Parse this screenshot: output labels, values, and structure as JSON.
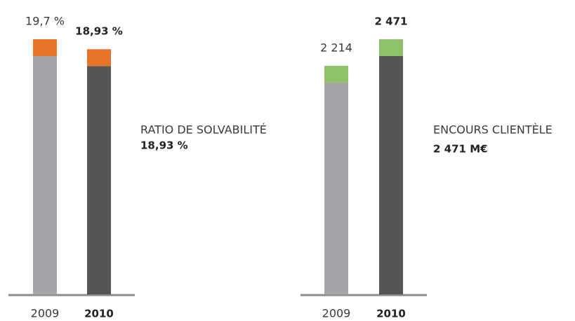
{
  "chart_data": [
    {
      "type": "bar",
      "categories": [
        "2009",
        "2010"
      ],
      "values": [
        19.7,
        18.93
      ],
      "value_labels": [
        "19,7 %",
        "18,93 %"
      ],
      "colors": [
        "#a3a5a8",
        "#535557"
      ],
      "cap_color": "#e8742a",
      "label": "RATIO DE SOLVABILITÉ",
      "highlight": "18,93 %"
    },
    {
      "type": "bar",
      "categories": [
        "2009",
        "2010"
      ],
      "values": [
        2214,
        2471
      ],
      "value_labels": [
        "2 214",
        "2 471"
      ],
      "colors": [
        "#a3a5a8",
        "#535557"
      ],
      "cap_color": "#8dc26b",
      "label": "ENCOURS CLIENTÈLE",
      "highlight": "2 471 M€"
    }
  ]
}
